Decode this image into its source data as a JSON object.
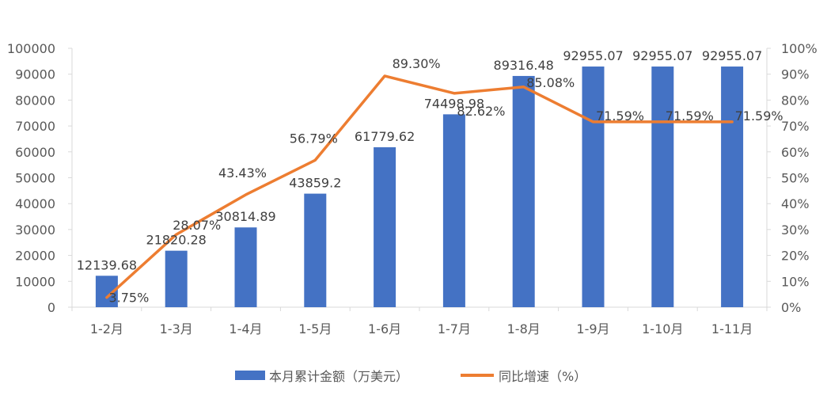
{
  "chart_data": {
    "type": "bar",
    "categories": [
      "1-2月",
      "1-3月",
      "1-4月",
      "1-5月",
      "1-6月",
      "1-7月",
      "1-8月",
      "1-9月",
      "1-10月",
      "1-11月"
    ],
    "series": [
      {
        "name": "本月累计金额（万美元）",
        "type": "bar",
        "axis": "left",
        "color": "#4472C4",
        "values": [
          12139.68,
          21820.28,
          30814.89,
          43859.2,
          61779.62,
          74498.98,
          89316.48,
          92955.07,
          92955.07,
          92955.07
        ],
        "labels": [
          "12139.68",
          "21820.28",
          "30814.89",
          "43859.2",
          "61779.62",
          "74498.98",
          "89316.48",
          "92955.07",
          "92955.07",
          "92955.07"
        ]
      },
      {
        "name": "同比增速（%）",
        "type": "line",
        "axis": "right",
        "color": "#ED7D31",
        "values": [
          3.75,
          28.07,
          43.43,
          56.79,
          89.3,
          82.62,
          85.08,
          71.59,
          71.59,
          71.59
        ],
        "labels": [
          "3.75%",
          "28.07%",
          "43.43%",
          "56.79%",
          "89.30%",
          "82.62%",
          "85.08%",
          "71.59%",
          "71.59%",
          "71.59%"
        ]
      }
    ],
    "y_left": {
      "ylim": [
        0,
        100000
      ],
      "ticks": [
        "0",
        "10000",
        "20000",
        "30000",
        "40000",
        "50000",
        "60000",
        "70000",
        "80000",
        "90000",
        "100000"
      ]
    },
    "y_right": {
      "ylim": [
        0,
        100
      ],
      "ticks": [
        "0%",
        "10%",
        "20%",
        "30%",
        "40%",
        "50%",
        "60%",
        "70%",
        "80%",
        "90%",
        "100%"
      ]
    },
    "grid": false,
    "legend_position": "bottom",
    "axis_color": "#D9D9D9",
    "text_color": "#595959"
  }
}
